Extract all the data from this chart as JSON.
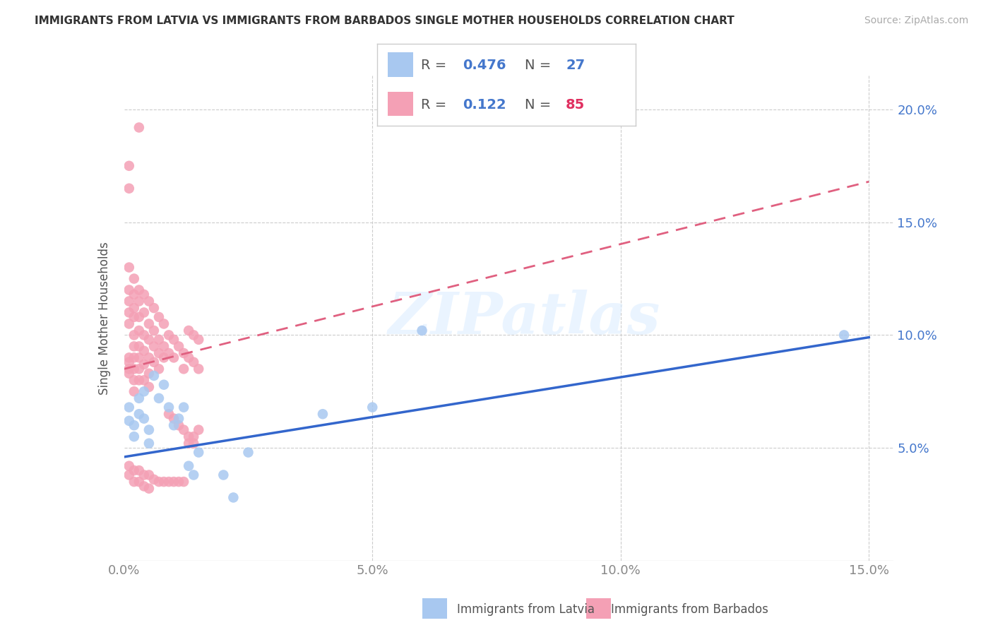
{
  "title": "IMMIGRANTS FROM LATVIA VS IMMIGRANTS FROM BARBADOS SINGLE MOTHER HOUSEHOLDS CORRELATION CHART",
  "source": "Source: ZipAtlas.com",
  "ylabel": "Single Mother Households",
  "xlim": [
    0.0,
    0.155
  ],
  "ylim": [
    0.0,
    0.215
  ],
  "color_latvia": "#a8c8f0",
  "color_barbados": "#f4a0b5",
  "trendline_latvia_color": "#3366cc",
  "trendline_barbados_color": "#e06080",
  "watermark": "ZIPatlas",
  "latvia_trendline": [
    [
      0.0,
      0.046
    ],
    [
      0.15,
      0.099
    ]
  ],
  "barbados_trendline": [
    [
      0.0,
      0.085
    ],
    [
      0.15,
      0.168
    ]
  ],
  "latvia_scatter": [
    [
      0.001,
      0.068
    ],
    [
      0.001,
      0.062
    ],
    [
      0.002,
      0.06
    ],
    [
      0.002,
      0.055
    ],
    [
      0.003,
      0.072
    ],
    [
      0.003,
      0.065
    ],
    [
      0.004,
      0.075
    ],
    [
      0.004,
      0.063
    ],
    [
      0.005,
      0.058
    ],
    [
      0.005,
      0.052
    ],
    [
      0.006,
      0.082
    ],
    [
      0.007,
      0.072
    ],
    [
      0.008,
      0.078
    ],
    [
      0.009,
      0.068
    ],
    [
      0.01,
      0.06
    ],
    [
      0.011,
      0.063
    ],
    [
      0.012,
      0.068
    ],
    [
      0.013,
      0.042
    ],
    [
      0.014,
      0.038
    ],
    [
      0.015,
      0.048
    ],
    [
      0.02,
      0.038
    ],
    [
      0.022,
      0.028
    ],
    [
      0.025,
      0.048
    ],
    [
      0.04,
      0.065
    ],
    [
      0.05,
      0.068
    ],
    [
      0.06,
      0.102
    ],
    [
      0.145,
      0.1
    ]
  ],
  "barbados_scatter": [
    [
      0.001,
      0.13
    ],
    [
      0.001,
      0.12
    ],
    [
      0.001,
      0.115
    ],
    [
      0.001,
      0.11
    ],
    [
      0.001,
      0.105
    ],
    [
      0.001,
      0.09
    ],
    [
      0.001,
      0.088
    ],
    [
      0.001,
      0.085
    ],
    [
      0.001,
      0.083
    ],
    [
      0.001,
      0.175
    ],
    [
      0.001,
      0.165
    ],
    [
      0.002,
      0.125
    ],
    [
      0.002,
      0.118
    ],
    [
      0.002,
      0.112
    ],
    [
      0.002,
      0.108
    ],
    [
      0.002,
      0.1
    ],
    [
      0.002,
      0.095
    ],
    [
      0.002,
      0.09
    ],
    [
      0.002,
      0.085
    ],
    [
      0.002,
      0.08
    ],
    [
      0.002,
      0.075
    ],
    [
      0.003,
      0.12
    ],
    [
      0.003,
      0.115
    ],
    [
      0.003,
      0.108
    ],
    [
      0.003,
      0.102
    ],
    [
      0.003,
      0.095
    ],
    [
      0.003,
      0.09
    ],
    [
      0.003,
      0.085
    ],
    [
      0.003,
      0.08
    ],
    [
      0.003,
      0.192
    ],
    [
      0.004,
      0.118
    ],
    [
      0.004,
      0.11
    ],
    [
      0.004,
      0.1
    ],
    [
      0.004,
      0.093
    ],
    [
      0.004,
      0.087
    ],
    [
      0.004,
      0.08
    ],
    [
      0.005,
      0.115
    ],
    [
      0.005,
      0.105
    ],
    [
      0.005,
      0.098
    ],
    [
      0.005,
      0.09
    ],
    [
      0.005,
      0.083
    ],
    [
      0.005,
      0.077
    ],
    [
      0.006,
      0.112
    ],
    [
      0.006,
      0.102
    ],
    [
      0.006,
      0.095
    ],
    [
      0.006,
      0.088
    ],
    [
      0.007,
      0.108
    ],
    [
      0.007,
      0.098
    ],
    [
      0.007,
      0.092
    ],
    [
      0.007,
      0.085
    ],
    [
      0.008,
      0.105
    ],
    [
      0.008,
      0.095
    ],
    [
      0.008,
      0.09
    ],
    [
      0.009,
      0.1
    ],
    [
      0.009,
      0.092
    ],
    [
      0.009,
      0.065
    ],
    [
      0.01,
      0.098
    ],
    [
      0.01,
      0.09
    ],
    [
      0.01,
      0.063
    ],
    [
      0.011,
      0.095
    ],
    [
      0.011,
      0.06
    ],
    [
      0.012,
      0.092
    ],
    [
      0.012,
      0.085
    ],
    [
      0.012,
      0.058
    ],
    [
      0.013,
      0.09
    ],
    [
      0.013,
      0.055
    ],
    [
      0.013,
      0.102
    ],
    [
      0.014,
      0.088
    ],
    [
      0.014,
      0.055
    ],
    [
      0.014,
      0.1
    ],
    [
      0.015,
      0.085
    ],
    [
      0.015,
      0.058
    ],
    [
      0.015,
      0.098
    ],
    [
      0.001,
      0.042
    ],
    [
      0.001,
      0.038
    ],
    [
      0.002,
      0.04
    ],
    [
      0.002,
      0.035
    ],
    [
      0.003,
      0.04
    ],
    [
      0.003,
      0.035
    ],
    [
      0.004,
      0.038
    ],
    [
      0.004,
      0.033
    ],
    [
      0.005,
      0.038
    ],
    [
      0.005,
      0.032
    ],
    [
      0.006,
      0.036
    ],
    [
      0.007,
      0.035
    ],
    [
      0.008,
      0.035
    ],
    [
      0.009,
      0.035
    ],
    [
      0.01,
      0.035
    ],
    [
      0.011,
      0.035
    ],
    [
      0.012,
      0.035
    ],
    [
      0.013,
      0.052
    ],
    [
      0.014,
      0.052
    ]
  ]
}
